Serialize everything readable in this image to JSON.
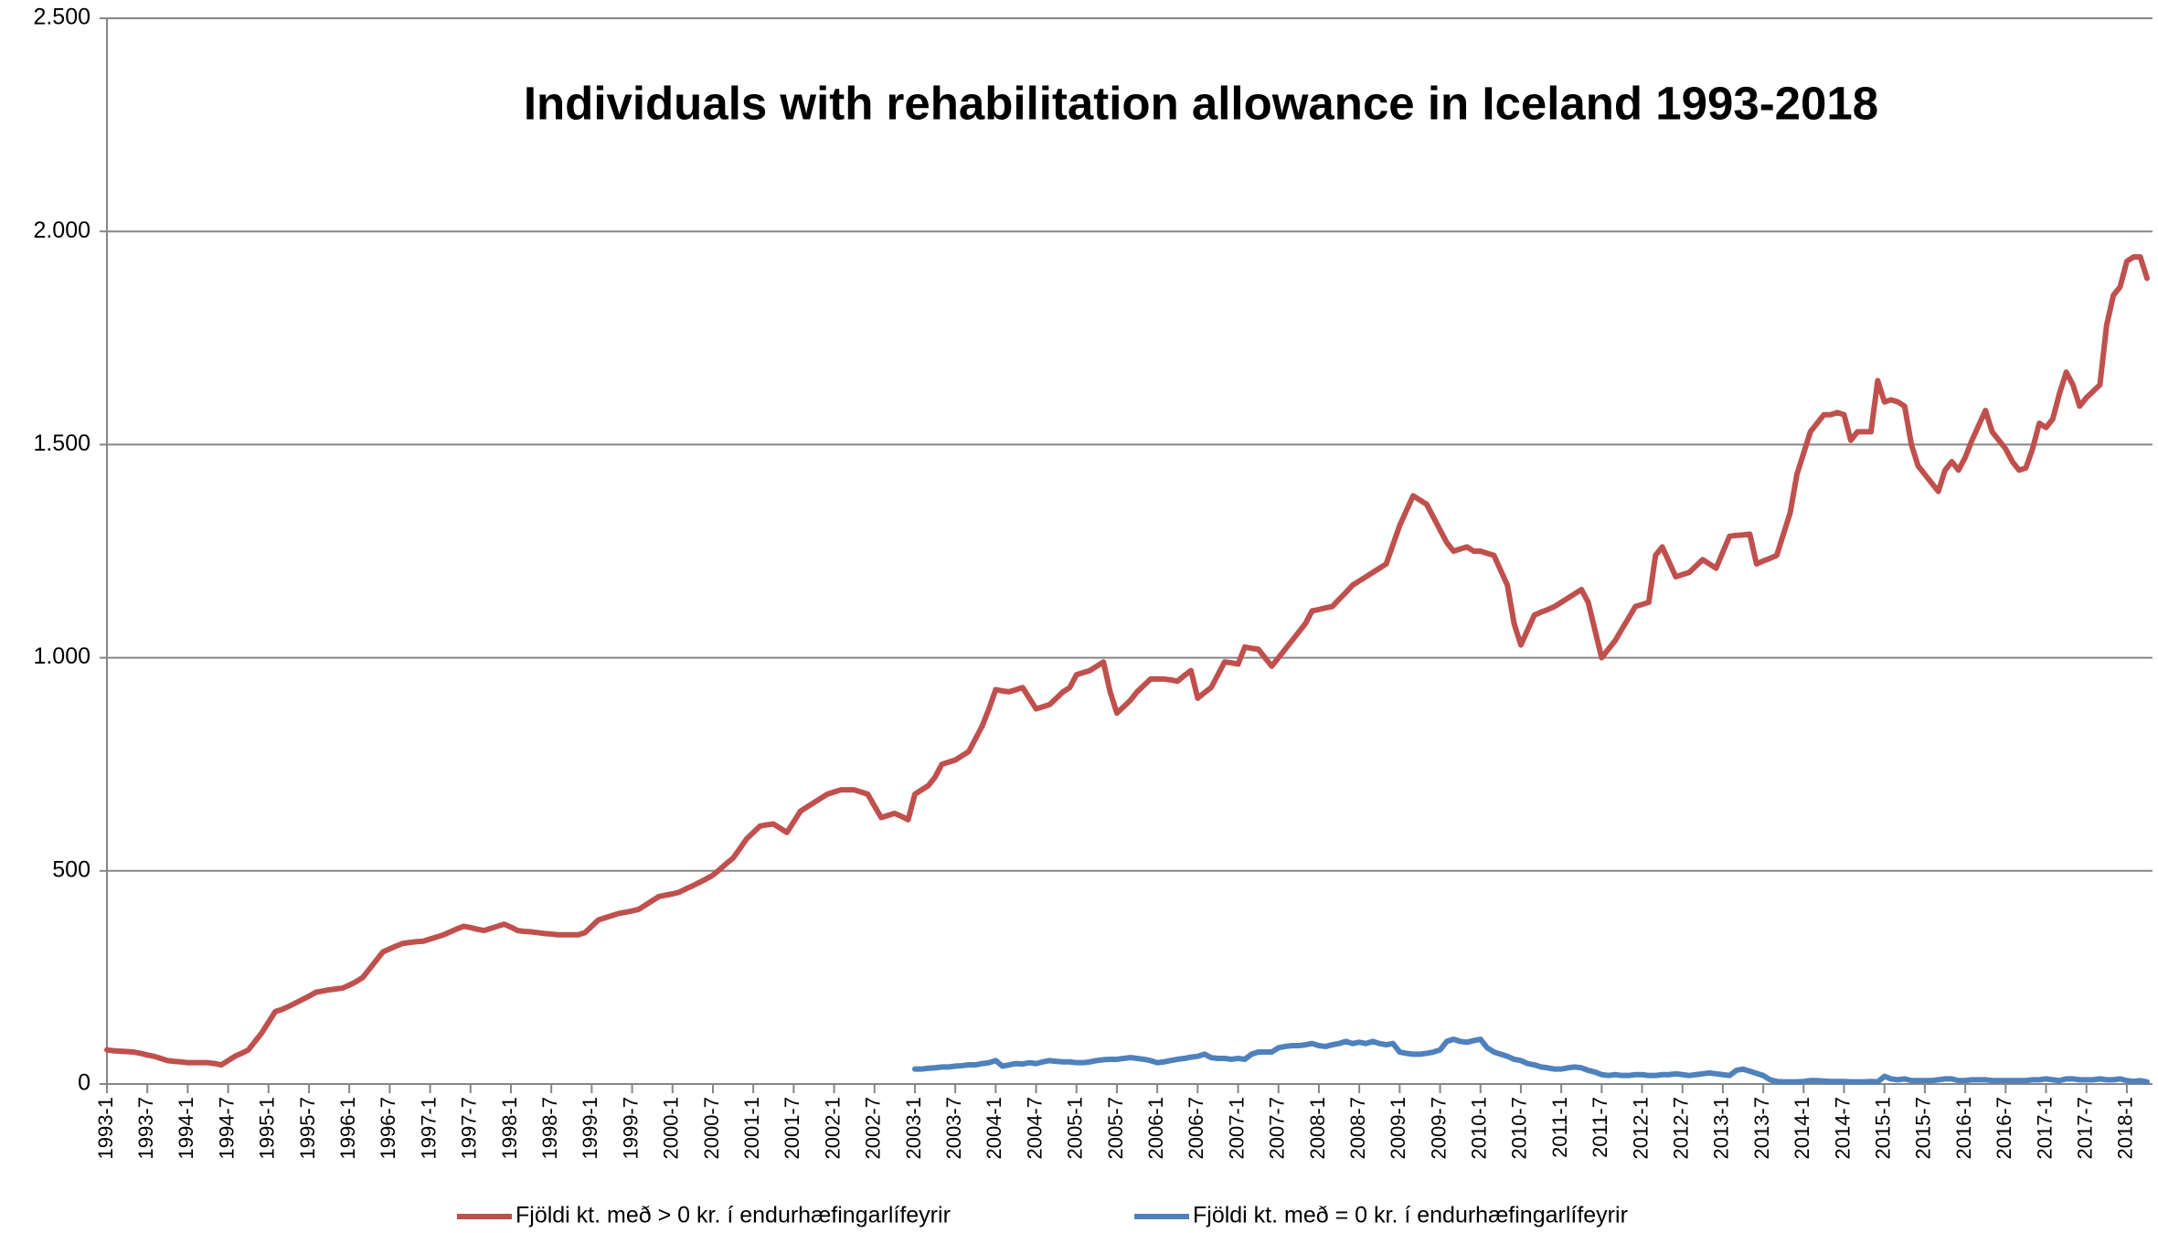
{
  "chart_data": {
    "type": "line",
    "title": "Individuals with rehabilitation allowance in Iceland 1993-2018",
    "categories": [
      "1993-1",
      null,
      null,
      null,
      null,
      null,
      "1993-7",
      null,
      null,
      null,
      null,
      null,
      "1994-1",
      null,
      null,
      null,
      null,
      null,
      "1994-7",
      null,
      null,
      null,
      null,
      null,
      "1995-1",
      null,
      null,
      null,
      null,
      null,
      "1995-7",
      null,
      null,
      null,
      null,
      null,
      "1996-1",
      null,
      null,
      null,
      null,
      null,
      "1996-7",
      null,
      null,
      null,
      null,
      null,
      "1997-1",
      null,
      null,
      null,
      null,
      null,
      "1997-7",
      null,
      null,
      null,
      null,
      null,
      "1998-1",
      null,
      null,
      null,
      null,
      null,
      "1998-7",
      null,
      null,
      null,
      null,
      null,
      "1999-1",
      null,
      null,
      null,
      null,
      null,
      "1999-7",
      null,
      null,
      null,
      null,
      null,
      "2000-1",
      null,
      null,
      null,
      null,
      null,
      "2000-7",
      null,
      null,
      null,
      null,
      null,
      "2001-1",
      null,
      null,
      null,
      null,
      null,
      "2001-7",
      null,
      null,
      null,
      null,
      null,
      "2002-1",
      null,
      null,
      null,
      null,
      null,
      "2002-7",
      null,
      null,
      null,
      null,
      null,
      "2003-1",
      null,
      null,
      null,
      null,
      null,
      "2003-7",
      null,
      null,
      null,
      null,
      null,
      "2004-1",
      null,
      null,
      null,
      null,
      null,
      "2004-7",
      null,
      null,
      null,
      null,
      null,
      "2005-1",
      null,
      null,
      null,
      null,
      null,
      "2005-7",
      null,
      null,
      null,
      null,
      null,
      "2006-1",
      null,
      null,
      null,
      null,
      null,
      "2006-7",
      null,
      null,
      null,
      null,
      null,
      "2007-1",
      null,
      null,
      null,
      null,
      null,
      "2007-7",
      null,
      null,
      null,
      null,
      null,
      "2008-1",
      null,
      null,
      null,
      null,
      null,
      "2008-7",
      null,
      null,
      null,
      null,
      null,
      "2009-1",
      null,
      null,
      null,
      null,
      null,
      "2009-7",
      null,
      null,
      null,
      null,
      null,
      "2010-1",
      null,
      null,
      null,
      null,
      null,
      "2010-7",
      null,
      null,
      null,
      null,
      null,
      "2011-1",
      null,
      null,
      null,
      null,
      null,
      "2011-7",
      null,
      null,
      null,
      null,
      null,
      "2012-1",
      null,
      null,
      null,
      null,
      null,
      "2012-7",
      null,
      null,
      null,
      null,
      null,
      "2013-1",
      null,
      null,
      null,
      null,
      null,
      "2013-7",
      null,
      null,
      null,
      null,
      null,
      "2014-1",
      null,
      null,
      null,
      null,
      null,
      "2014-7",
      null,
      null,
      null,
      null,
      null,
      "2015-1",
      null,
      null,
      null,
      null,
      null,
      "2015-7",
      null,
      null,
      null,
      null,
      null,
      "2016-1",
      null,
      null,
      null,
      null,
      null,
      "2016-7",
      null,
      null,
      null,
      null,
      null,
      "2017-1",
      null,
      null,
      null,
      null,
      null,
      "2017-7",
      null,
      null,
      null,
      null,
      null,
      "2018-1",
      null,
      null,
      null
    ],
    "series": [
      {
        "name": "Fjöldi kt. með > 0 kr. í endurhæfingarlífeyrir",
        "color": "#c0504d",
        "values": [
          80,
          78,
          77,
          76,
          75,
          72,
          68,
          65,
          60,
          55,
          53,
          52,
          50,
          50,
          50,
          50,
          48,
          45,
          55,
          65,
          72,
          80,
          100,
          120,
          145,
          170,
          175,
          182,
          190,
          198,
          206,
          215,
          218,
          221,
          223,
          225,
          232,
          240,
          250,
          270,
          290,
          310,
          317,
          324,
          330,
          332,
          334,
          335,
          340,
          345,
          350,
          357,
          364,
          370,
          367,
          363,
          360,
          365,
          370,
          375,
          368,
          360,
          358,
          357,
          355,
          353,
          352,
          350,
          350,
          350,
          350,
          355,
          370,
          385,
          390,
          395,
          400,
          403,
          406,
          410,
          420,
          430,
          440,
          443,
          446,
          450,
          458,
          465,
          473,
          481,
          490,
          503,
          517,
          530,
          552,
          575,
          590,
          605,
          608,
          610,
          600,
          590,
          615,
          640,
          650,
          660,
          670,
          680,
          685,
          690,
          690,
          690,
          685,
          680,
          652,
          625,
          630,
          635,
          628,
          620,
          680,
          690,
          700,
          720,
          750,
          755,
          760,
          770,
          780,
          810,
          840,
          880,
          925,
          922,
          920,
          925,
          930,
          905,
          880,
          885,
          890,
          905,
          920,
          930,
          960,
          965,
          970,
          980,
          990,
          920,
          870,
          885,
          900,
          920,
          935,
          950,
          950,
          950,
          948,
          945,
          958,
          970,
          905,
          918,
          930,
          960,
          990,
          988,
          985,
          1025,
          1022,
          1020,
          1000,
          980,
          1000,
          1020,
          1040,
          1060,
          1080,
          1110,
          1113,
          1117,
          1120,
          1137,
          1153,
          1170,
          1180,
          1190,
          1200,
          1210,
          1220,
          1265,
          1310,
          1345,
          1380,
          1370,
          1360,
          1330,
          1300,
          1270,
          1250,
          1255,
          1260,
          1250,
          1250,
          1245,
          1240,
          1205,
          1170,
          1080,
          1030,
          1065,
          1100,
          1107,
          1113,
          1120,
          1130,
          1140,
          1150,
          1160,
          1130,
          1065,
          1000,
          1020,
          1040,
          1067,
          1093,
          1120,
          1125,
          1130,
          1240,
          1260,
          1225,
          1190,
          1195,
          1200,
          1215,
          1230,
          1220,
          1210,
          1248,
          1285,
          1287,
          1288,
          1290,
          1220,
          1227,
          1233,
          1240,
          1290,
          1340,
          1430,
          1480,
          1530,
          1550,
          1570,
          1570,
          1575,
          1570,
          1510,
          1530,
          1530,
          1530,
          1650,
          1600,
          1605,
          1600,
          1590,
          1500,
          1450,
          1430,
          1410,
          1390,
          1440,
          1460,
          1440,
          1470,
          1510,
          1545,
          1580,
          1530,
          1510,
          1490,
          1460,
          1440,
          1445,
          1490,
          1550,
          1540,
          1560,
          1620,
          1670,
          1640,
          1590,
          1610,
          1625,
          1640,
          1780,
          1850,
          1870,
          1930,
          1940,
          1940,
          1890
        ]
      },
      {
        "name": "Fjöldi kt. með = 0 kr. í endurhæfingarlífeyrir",
        "color": "#4f81bd",
        "values": [
          null,
          null,
          null,
          null,
          null,
          null,
          null,
          null,
          null,
          null,
          null,
          null,
          null,
          null,
          null,
          null,
          null,
          null,
          null,
          null,
          null,
          null,
          null,
          null,
          null,
          null,
          null,
          null,
          null,
          null,
          null,
          null,
          null,
          null,
          null,
          null,
          null,
          null,
          null,
          null,
          null,
          null,
          null,
          null,
          null,
          null,
          null,
          null,
          null,
          null,
          null,
          null,
          null,
          null,
          null,
          null,
          null,
          null,
          null,
          null,
          null,
          null,
          null,
          null,
          null,
          null,
          null,
          null,
          null,
          null,
          null,
          null,
          null,
          null,
          null,
          null,
          null,
          null,
          null,
          null,
          null,
          null,
          null,
          null,
          null,
          null,
          null,
          null,
          null,
          null,
          null,
          null,
          null,
          null,
          null,
          null,
          null,
          null,
          null,
          null,
          null,
          null,
          null,
          null,
          null,
          null,
          null,
          null,
          null,
          null,
          null,
          null,
          null,
          null,
          null,
          null,
          null,
          null,
          null,
          null,
          35,
          35,
          37,
          38,
          40,
          40,
          42,
          43,
          45,
          45,
          48,
          50,
          55,
          42,
          45,
          48,
          47,
          50,
          48,
          52,
          55,
          53,
          52,
          52,
          50,
          50,
          52,
          55,
          57,
          58,
          58,
          60,
          62,
          60,
          58,
          55,
          50,
          52,
          55,
          58,
          60,
          63,
          65,
          70,
          62,
          60,
          60,
          58,
          60,
          58,
          70,
          75,
          75,
          75,
          85,
          88,
          90,
          90,
          92,
          95,
          90,
          88,
          92,
          95,
          100,
          95,
          98,
          95,
          100,
          95,
          92,
          95,
          75,
          72,
          70,
          70,
          72,
          75,
          80,
          100,
          105,
          100,
          98,
          102,
          105,
          85,
          75,
          70,
          65,
          58,
          55,
          48,
          45,
          40,
          38,
          35,
          35,
          38,
          40,
          38,
          32,
          28,
          22,
          20,
          22,
          20,
          20,
          22,
          22,
          20,
          20,
          22,
          22,
          24,
          22,
          20,
          22,
          24,
          26,
          24,
          22,
          20,
          32,
          35,
          30,
          25,
          20,
          10,
          6,
          5,
          5,
          5,
          6,
          8,
          8,
          7,
          6,
          6,
          6,
          5,
          5,
          5,
          6,
          5,
          18,
          12,
          10,
          12,
          8,
          8,
          8,
          8,
          10,
          12,
          12,
          8,
          8,
          10,
          10,
          10,
          8,
          8,
          8,
          8,
          8,
          8,
          10,
          10,
          12,
          10,
          8,
          12,
          12,
          10,
          10,
          10,
          12,
          10,
          10,
          12,
          8,
          6,
          8,
          5
        ]
      }
    ],
    "ylim": [
      0,
      2500
    ],
    "yticks": [
      0,
      500,
      {
        "value": 1000,
        "label": "1.000"
      },
      {
        "value": 1500,
        "label": "1.500"
      },
      {
        "value": 2000,
        "label": "2.000"
      },
      {
        "value": 2500,
        "label": "2.500"
      }
    ],
    "grid": true,
    "legend": "bottom"
  }
}
